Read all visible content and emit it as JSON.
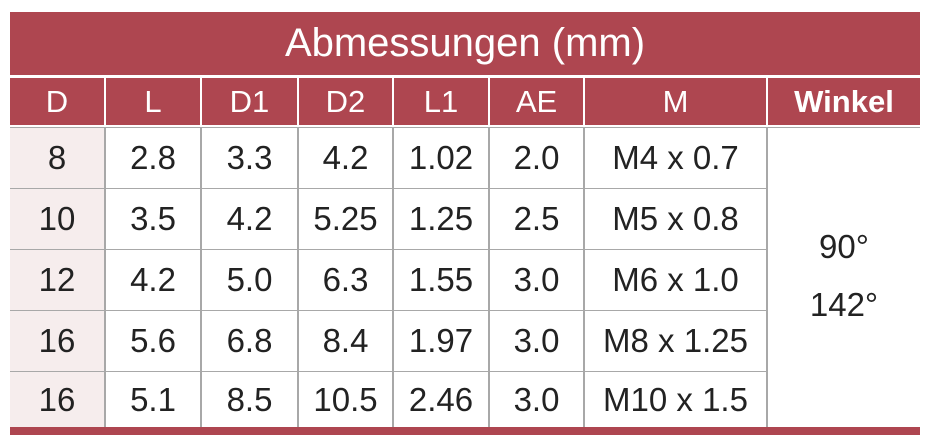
{
  "title": "Abmessungen (mm)",
  "table": {
    "header": [
      "D",
      "L",
      "D1",
      "D2",
      "L1",
      "AE",
      "M",
      "Winkel"
    ],
    "rows": [
      [
        "8",
        "2.8",
        "3.3",
        "4.2",
        "1.02",
        "2.0",
        "M4 x 0.7"
      ],
      [
        "10",
        "3.5",
        "4.2",
        "5.25",
        "1.25",
        "2.5",
        "M5 x 0.8"
      ],
      [
        "12",
        "4.2",
        "5.0",
        "6.3",
        "1.55",
        "3.0",
        "M6 x 1.0"
      ],
      [
        "16",
        "5.6",
        "6.8",
        "8.4",
        "1.97",
        "3.0",
        "M8 x 1.25"
      ],
      [
        "16",
        "5.1",
        "8.5",
        "10.5",
        "2.46",
        "3.0",
        "M10 x 1.5"
      ]
    ],
    "winkel": [
      "90°",
      "142°"
    ]
  }
}
